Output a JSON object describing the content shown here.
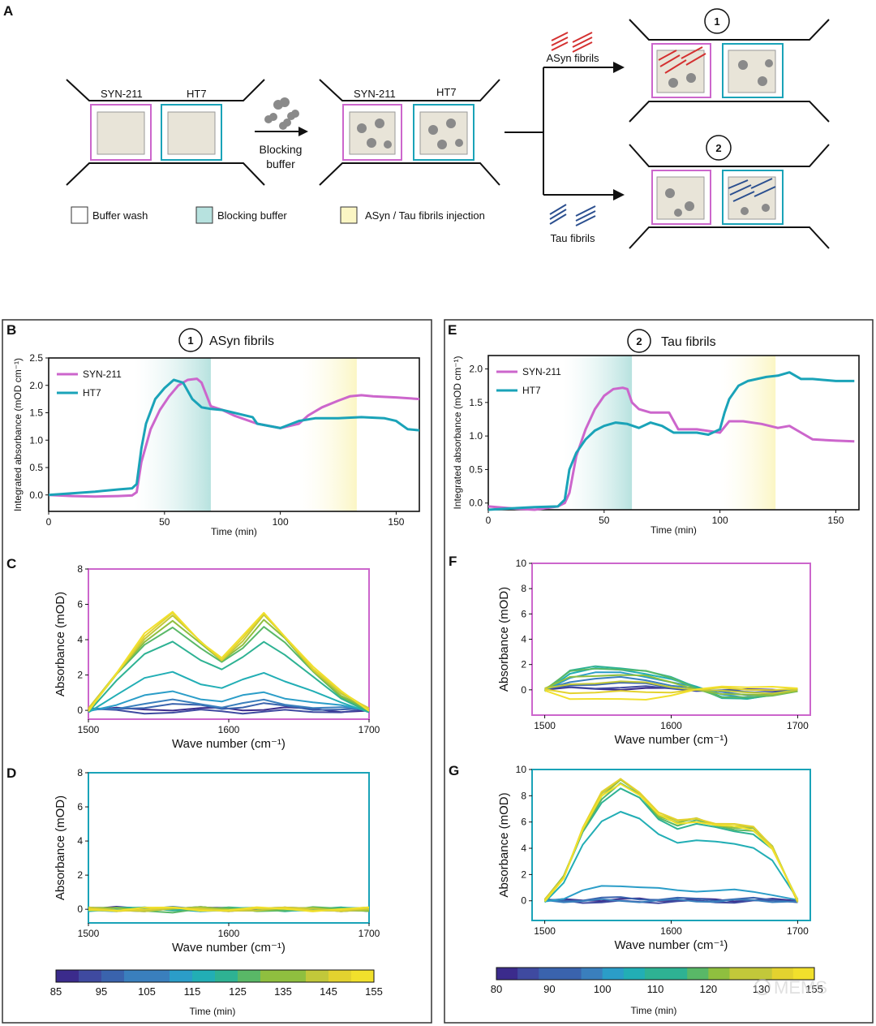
{
  "panel_a": {
    "letter": "A",
    "antibody_left": "SYN-211",
    "antibody_right": "HT7",
    "blocking_step": [
      "Blocking",
      "buffer"
    ],
    "path1_number": "1",
    "path2_number": "2",
    "path1_label": "ASyn fibrils",
    "path2_label": "Tau  fibrils",
    "legend": [
      "Buffer wash",
      "Blocking buffer",
      "ASyn / Tau fibrils injection"
    ],
    "colors": {
      "syn211": "#cc66cc",
      "ht7": "#1aa3b8",
      "blocking": "#b7e2df",
      "injection": "#fbf6c4",
      "asyn_fibril": "#d43030",
      "tau_fibril": "#2b4f8f",
      "blocking_protein": "#8a8a8a"
    }
  },
  "chart_data": [
    {
      "id": "B",
      "type": "line",
      "title_number": "1",
      "title": "ASyn fibrils",
      "xlabel": "Time (min)",
      "ylabel": "Integrated absorbance (mOD cm⁻¹)",
      "xlim": [
        0,
        160
      ],
      "ylim": [
        -0.3,
        2.5
      ],
      "xticks": [
        "0",
        "50",
        "100",
        "150"
      ],
      "xtick_values": [
        0,
        50,
        100,
        150
      ],
      "yticks": [
        "0.0",
        "0.5",
        "1.0",
        "1.5",
        "2.0",
        "2.5"
      ],
      "ytick_values": [
        0,
        0.5,
        1.0,
        1.5,
        2.0,
        2.5
      ],
      "shaded": [
        {
          "from": 37,
          "to": 70,
          "kind": "blocking"
        },
        {
          "from": 108,
          "to": 133,
          "kind": "injection"
        }
      ],
      "series": [
        {
          "name": "SYN-211",
          "color": "#cc66cc",
          "x": [
            0,
            10,
            20,
            30,
            36,
            38,
            40,
            44,
            48,
            52,
            56,
            60,
            64,
            66,
            70,
            75,
            80,
            90,
            100,
            108,
            112,
            118,
            125,
            130,
            135,
            140,
            150,
            160
          ],
          "y": [
            0.0,
            -0.02,
            -0.03,
            -0.02,
            -0.01,
            0.05,
            0.6,
            1.2,
            1.55,
            1.8,
            2.0,
            2.1,
            2.12,
            2.05,
            1.62,
            1.55,
            1.45,
            1.3,
            1.22,
            1.3,
            1.45,
            1.6,
            1.72,
            1.8,
            1.82,
            1.8,
            1.78,
            1.75
          ]
        },
        {
          "name": "HT7",
          "color": "#1aa3b8",
          "x": [
            0,
            10,
            20,
            30,
            36,
            38,
            40,
            42,
            46,
            50,
            54,
            58,
            62,
            66,
            70,
            75,
            80,
            88,
            90,
            100,
            108,
            115,
            125,
            135,
            145,
            150,
            155,
            160
          ],
          "y": [
            0.0,
            0.03,
            0.06,
            0.1,
            0.12,
            0.2,
            0.85,
            1.3,
            1.75,
            1.95,
            2.1,
            2.05,
            1.75,
            1.6,
            1.57,
            1.55,
            1.5,
            1.42,
            1.3,
            1.22,
            1.35,
            1.4,
            1.4,
            1.42,
            1.4,
            1.35,
            1.2,
            1.18
          ]
        }
      ]
    },
    {
      "id": "E",
      "type": "line",
      "title_number": "2",
      "title": "Tau fibrils",
      "xlabel": "Time (min)",
      "ylabel": "Integrated absorbance (mOD cm⁻¹)",
      "xlim": [
        0,
        160
      ],
      "ylim": [
        -0.1,
        2.2
      ],
      "xticks": [
        "0",
        "50",
        "100",
        "150"
      ],
      "xtick_values": [
        0,
        50,
        100,
        150
      ],
      "yticks": [
        "0.0",
        "0.5",
        "1.0",
        "1.5",
        "2.0"
      ],
      "ytick_values": [
        0,
        0.5,
        1.0,
        1.5,
        2.0
      ],
      "shaded": [
        {
          "from": 32,
          "to": 62,
          "kind": "blocking"
        },
        {
          "from": 100,
          "to": 124,
          "kind": "injection"
        }
      ],
      "series": [
        {
          "name": "SYN-211",
          "color": "#cc66cc",
          "x": [
            0,
            10,
            20,
            30,
            33,
            35,
            38,
            42,
            46,
            50,
            54,
            58,
            60,
            62,
            65,
            70,
            78,
            82,
            90,
            100,
            104,
            110,
            118,
            125,
            130,
            135,
            140,
            150,
            158
          ],
          "y": [
            -0.05,
            -0.08,
            -0.1,
            -0.05,
            0.0,
            0.15,
            0.7,
            1.1,
            1.4,
            1.6,
            1.7,
            1.72,
            1.7,
            1.5,
            1.4,
            1.35,
            1.35,
            1.1,
            1.1,
            1.05,
            1.22,
            1.22,
            1.18,
            1.12,
            1.15,
            1.05,
            0.95,
            0.93,
            0.92
          ]
        },
        {
          "name": "HT7",
          "color": "#1aa3b8",
          "x": [
            0,
            10,
            20,
            30,
            33,
            35,
            38,
            42,
            46,
            50,
            55,
            60,
            65,
            70,
            75,
            80,
            90,
            95,
            100,
            102,
            104,
            108,
            112,
            116,
            120,
            125,
            130,
            135,
            140,
            150,
            158
          ],
          "y": [
            -0.1,
            -0.08,
            -0.06,
            -0.05,
            0.05,
            0.5,
            0.75,
            0.95,
            1.08,
            1.15,
            1.2,
            1.18,
            1.12,
            1.2,
            1.15,
            1.05,
            1.05,
            1.02,
            1.1,
            1.35,
            1.55,
            1.75,
            1.82,
            1.85,
            1.88,
            1.9,
            1.95,
            1.85,
            1.85,
            1.82,
            1.82
          ]
        }
      ]
    },
    {
      "id": "C",
      "type": "line",
      "frame_color": "#cc66cc",
      "xlabel": "Wave number (cm⁻¹)",
      "ylabel": "Absorbance (mOD)",
      "xlim": [
        1500,
        1700
      ],
      "ylim": [
        -0.5,
        8
      ],
      "xticks": [
        "1500",
        "1600",
        "1700"
      ],
      "xtick_values": [
        1500,
        1600,
        1700
      ],
      "yticks": [
        "0",
        "2",
        "4",
        "6",
        "8"
      ],
      "ytick_values": [
        0,
        2,
        4,
        6,
        8
      ],
      "x": [
        1500,
        1520,
        1540,
        1560,
        1580,
        1595,
        1610,
        1625,
        1640,
        1660,
        1680,
        1700
      ],
      "shape": [
        0.0,
        0.4,
        0.78,
        1.0,
        0.72,
        0.55,
        0.75,
        1.0,
        0.78,
        0.45,
        0.18,
        0.0
      ],
      "amplitudes": [
        0.1,
        -0.1,
        0.3,
        0.5,
        1.0,
        2.2,
        4.0,
        4.8,
        5.1,
        5.3,
        5.4,
        5.5
      ],
      "time_labels": [
        "85",
        "95",
        "105",
        "115",
        "125",
        "135",
        "145",
        "155"
      ]
    },
    {
      "id": "D",
      "type": "line",
      "frame_color": "#1aa3b8",
      "xlabel": "Wave number (cm⁻¹)",
      "ylabel": "Absorbance (mOD)",
      "xlim": [
        1500,
        1700
      ],
      "ylim": [
        -0.8,
        8
      ],
      "xticks": [
        "1500",
        "1600",
        "1700"
      ],
      "xtick_values": [
        1500,
        1600,
        1700
      ],
      "yticks": [
        "0",
        "2",
        "4",
        "6",
        "8"
      ],
      "ytick_values": [
        0,
        2,
        4,
        6,
        8
      ],
      "x": [
        1500,
        1520,
        1540,
        1560,
        1580,
        1600,
        1620,
        1640,
        1660,
        1680,
        1700
      ],
      "shape": [
        0.0,
        0.1,
        0.2,
        0.3,
        0.1,
        0.0,
        0.1,
        0.0,
        -0.1,
        0.0,
        0.0
      ],
      "amplitudes": [
        0.3,
        0.2,
        -0.1,
        0.1,
        -0.2,
        0.0,
        0.1,
        -0.3,
        0.2,
        -0.1,
        0.0,
        0.1
      ],
      "time_labels": [
        "85",
        "95",
        "105",
        "115",
        "125",
        "135",
        "145",
        "155"
      ]
    },
    {
      "id": "F",
      "type": "line",
      "frame_color": "#cc66cc",
      "xlabel": "Wave number (cm⁻¹)",
      "ylabel": "Absorbance (mOD)",
      "xlim": [
        1490,
        1710
      ],
      "ylim": [
        -2,
        10
      ],
      "xticks": [
        "1500",
        "1600",
        "1700"
      ],
      "xtick_values": [
        1500,
        1600,
        1700
      ],
      "yticks": [
        "0",
        "2",
        "4",
        "6",
        "8",
        "10"
      ],
      "ytick_values": [
        0,
        2,
        4,
        6,
        8,
        10
      ],
      "x": [
        1500,
        1520,
        1540,
        1560,
        1580,
        1600,
        1620,
        1640,
        1660,
        1680,
        1700
      ],
      "shape": [
        0.0,
        0.8,
        1.0,
        1.0,
        0.85,
        0.5,
        0.1,
        -0.3,
        -0.4,
        -0.3,
        0.0
      ],
      "amplitudes": [
        0.1,
        0.2,
        0.5,
        0.9,
        1.3,
        1.6,
        1.8,
        1.7,
        1.2,
        0.6,
        -0.2,
        -0.8
      ],
      "time_labels": [
        "80",
        "90",
        "100",
        "110",
        "120",
        "130",
        "155"
      ]
    },
    {
      "id": "G",
      "type": "line",
      "frame_color": "#1aa3b8",
      "xlabel": "Wave number (cm⁻¹)",
      "ylabel": "Absorbance (mOD)",
      "xlim": [
        1490,
        1710
      ],
      "ylim": [
        -1.5,
        10
      ],
      "xticks": [
        "1500",
        "1600",
        "1700"
      ],
      "xtick_values": [
        1500,
        1600,
        1700
      ],
      "yticks": [
        "0",
        "2",
        "4",
        "6",
        "8",
        "10"
      ],
      "ytick_values": [
        0,
        2,
        4,
        6,
        8,
        10
      ],
      "x": [
        1500,
        1515,
        1530,
        1545,
        1560,
        1575,
        1590,
        1605,
        1620,
        1635,
        1650,
        1665,
        1680,
        1700
      ],
      "shape": [
        0.0,
        0.2,
        0.6,
        0.88,
        1.0,
        0.9,
        0.72,
        0.65,
        0.68,
        0.64,
        0.62,
        0.6,
        0.45,
        0.0
      ],
      "amplitudes": [
        0.1,
        -0.1,
        0.2,
        0.0,
        1.2,
        6.9,
        8.6,
        8.9,
        9.1,
        9.2,
        9.3,
        9.0
      ],
      "time_labels": [
        "80",
        "90",
        "100",
        "110",
        "120",
        "130",
        "155"
      ]
    }
  ],
  "colorbar_left": {
    "label": "Time (min)"
  },
  "colorbar_right": {
    "label": "Time (min)"
  },
  "watermark": "MEMS"
}
